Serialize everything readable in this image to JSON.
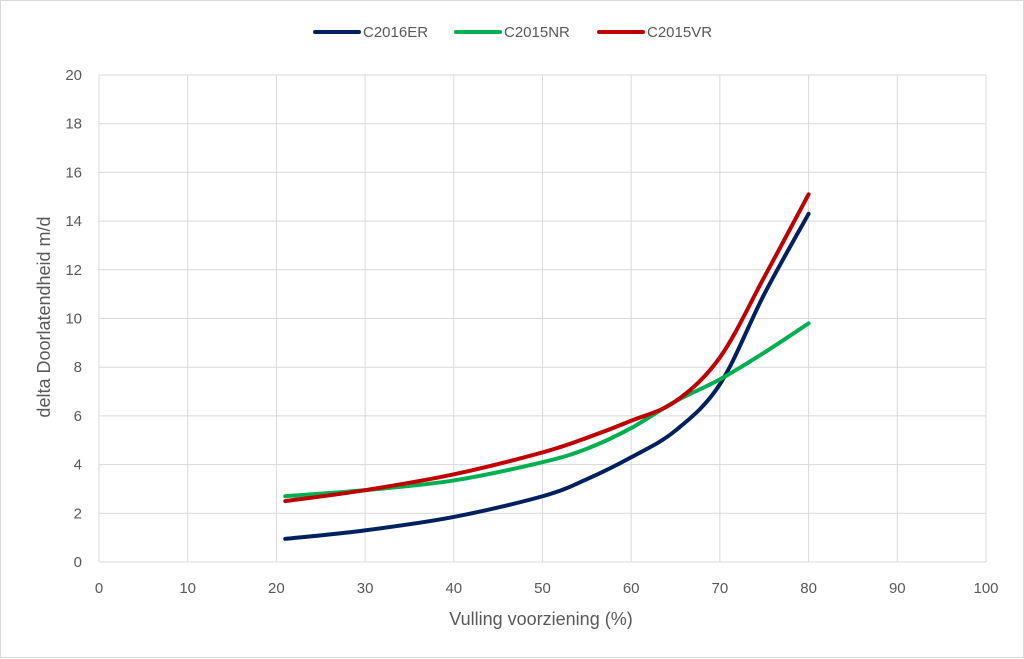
{
  "chart_data": {
    "type": "line",
    "title": "",
    "xlabel": "Vulling  voorziening (%)",
    "ylabel": "delta Doorlatendheid m/d",
    "xlim": [
      0,
      100
    ],
    "ylim": [
      0,
      20
    ],
    "x_ticks": [
      "0",
      "10",
      "20",
      "30",
      "40",
      "50",
      "60",
      "70",
      "80",
      "90",
      "100"
    ],
    "y_ticks": [
      "0",
      "2",
      "4",
      "6",
      "8",
      "10",
      "12",
      "14",
      "16",
      "18",
      "20"
    ],
    "grid": true,
    "legend_position": "top",
    "series": [
      {
        "name": "C2016ER",
        "color": "#002060",
        "x": [
          21,
          30,
          40,
          50,
          55,
          60,
          65,
          70,
          75,
          80
        ],
        "y": [
          0.95,
          1.3,
          1.85,
          2.7,
          3.4,
          4.3,
          5.4,
          7.3,
          11.0,
          14.3
        ]
      },
      {
        "name": "C2015NR",
        "color": "#00b050",
        "x": [
          21,
          30,
          40,
          50,
          55,
          60,
          65,
          70,
          75,
          80
        ],
        "y": [
          2.7,
          2.95,
          3.35,
          4.1,
          4.65,
          5.5,
          6.6,
          7.5,
          8.6,
          9.8
        ]
      },
      {
        "name": "C2015VR",
        "color": "#c00000",
        "x": [
          21,
          30,
          40,
          50,
          55,
          60,
          65,
          70,
          75,
          80
        ],
        "y": [
          2.5,
          2.95,
          3.6,
          4.5,
          5.1,
          5.8,
          6.6,
          8.4,
          11.7,
          15.1
        ]
      }
    ]
  }
}
